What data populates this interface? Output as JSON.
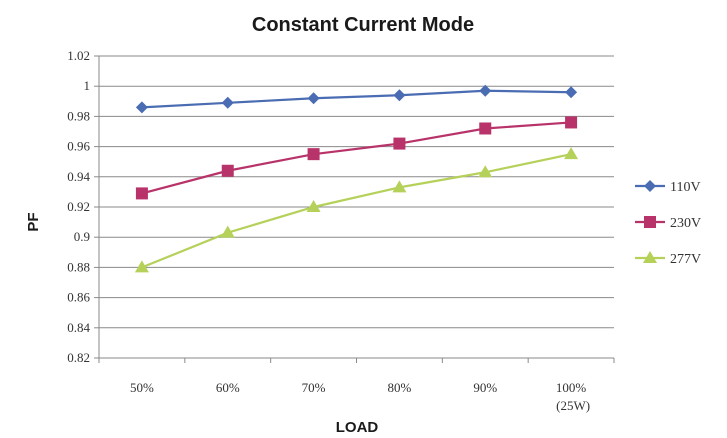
{
  "chart_data": {
    "type": "line",
    "title": "Constant Current Mode",
    "xlabel": "LOAD",
    "ylabel": "PF",
    "categories": [
      "50%",
      "60%",
      "70%",
      "80%",
      "90%",
      "100%"
    ],
    "category_sublabels": [
      "",
      "",
      "",
      "",
      "",
      "(25W)"
    ],
    "ylim": [
      0.82,
      1.02
    ],
    "yticks": [
      "0.82",
      "0.84",
      "0.86",
      "0.88",
      "0.9",
      "0.92",
      "0.94",
      "0.96",
      "0.98",
      "1",
      "1.02"
    ],
    "grid": true,
    "legend_position": "right",
    "series": [
      {
        "name": "110V",
        "color": "#4a6cb3",
        "marker": "diamond",
        "values": [
          0.986,
          0.989,
          0.992,
          0.994,
          0.997,
          0.996
        ]
      },
      {
        "name": "230V",
        "color": "#b8336a",
        "marker": "square",
        "values": [
          0.929,
          0.944,
          0.955,
          0.962,
          0.972,
          0.976
        ]
      },
      {
        "name": "277V",
        "color": "#b5d15a",
        "marker": "triangle",
        "values": [
          0.88,
          0.903,
          0.92,
          0.933,
          0.943,
          0.955
        ]
      }
    ]
  }
}
